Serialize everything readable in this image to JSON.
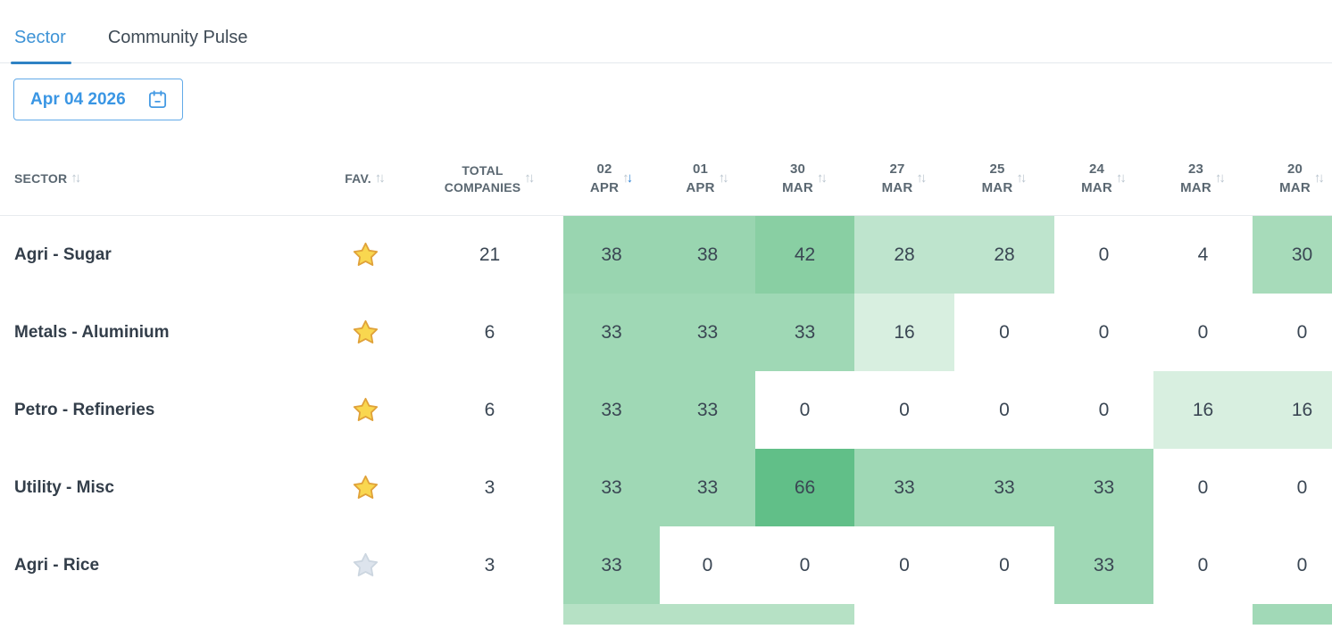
{
  "tabs": [
    {
      "label": "Sector",
      "active": true
    },
    {
      "label": "Community Pulse",
      "active": false
    }
  ],
  "date_picker": {
    "value": "Apr 04 2026"
  },
  "table": {
    "headers": {
      "sector": "SECTOR",
      "fav": "FAV.",
      "total_line1": "TOTAL",
      "total_line2": "COMPANIES",
      "dates": [
        {
          "day": "02",
          "month": "APR",
          "sort": "desc"
        },
        {
          "day": "01",
          "month": "APR",
          "sort": "none"
        },
        {
          "day": "30",
          "month": "MAR",
          "sort": "none"
        },
        {
          "day": "27",
          "month": "MAR",
          "sort": "none"
        },
        {
          "day": "25",
          "month": "MAR",
          "sort": "none"
        },
        {
          "day": "24",
          "month": "MAR",
          "sort": "none"
        },
        {
          "day": "23",
          "month": "MAR",
          "sort": "none"
        },
        {
          "day": "20",
          "month": "MAR",
          "sort": "none"
        }
      ]
    },
    "rows": [
      {
        "sector": "Agri - Sugar",
        "favorite": true,
        "total": "21",
        "values": [
          "38",
          "38",
          "42",
          "28",
          "28",
          "0",
          "4",
          "30"
        ],
        "colors": [
          "#99d5b0",
          "#99d5b0",
          "#89cfa3",
          "#bee4cd",
          "#bee4cd",
          "#ffffff",
          "#ffffff",
          "#a7dbba"
        ]
      },
      {
        "sector": "Metals - Aluminium",
        "favorite": true,
        "total": "6",
        "values": [
          "33",
          "33",
          "33",
          "16",
          "0",
          "0",
          "0",
          "0"
        ],
        "colors": [
          "#9fd8b5",
          "#9fd8b5",
          "#9fd8b5",
          "#d8efe0",
          "#ffffff",
          "#ffffff",
          "#ffffff",
          "#ffffff"
        ]
      },
      {
        "sector": "Petro - Refineries",
        "favorite": true,
        "total": "6",
        "values": [
          "33",
          "33",
          "0",
          "0",
          "0",
          "0",
          "16",
          "16"
        ],
        "colors": [
          "#9fd8b5",
          "#9fd8b5",
          "#ffffff",
          "#ffffff",
          "#ffffff",
          "#ffffff",
          "#d8efe0",
          "#d8efe0"
        ]
      },
      {
        "sector": "Utility - Misc",
        "favorite": true,
        "total": "3",
        "values": [
          "33",
          "33",
          "66",
          "33",
          "33",
          "33",
          "0",
          "0"
        ],
        "colors": [
          "#9fd8b5",
          "#9fd8b5",
          "#61bf88",
          "#9fd8b5",
          "#9fd8b5",
          "#9fd8b5",
          "#ffffff",
          "#ffffff"
        ]
      },
      {
        "sector": "Agri - Rice",
        "favorite": false,
        "total": "3",
        "values": [
          "33",
          "0",
          "0",
          "0",
          "0",
          "33",
          "0",
          "0"
        ],
        "colors": [
          "#9fd8b5",
          "#ffffff",
          "#ffffff",
          "#ffffff",
          "#ffffff",
          "#9fd8b5",
          "#ffffff",
          "#ffffff"
        ]
      }
    ],
    "partial_row_colors": [
      "#b6e1c5",
      "#b6e1c5",
      "#b6e1c5",
      "#ffffff",
      "#ffffff",
      "#ffffff",
      "#ffffff",
      "#a1d9b7"
    ]
  },
  "icons": {
    "sort_up_glyph": "↑",
    "sort_down_glyph": "↓",
    "calendar": "calendar-icon",
    "favorite": "star-filled-icon",
    "not_favorite": "star-outline-icon"
  },
  "colors": {
    "tab_active": "#3e93d6",
    "tab_underline": "#2e82c4",
    "date_text": "#3a96e4",
    "date_border": "#62aae8",
    "header_text": "#5a6771",
    "sort_arrow": "#b9c4ce",
    "sort_arrow_active": "#2e82d4",
    "row_text": "#333e4a",
    "cell_text": "#3a4653",
    "star_gold_fill": "#f9d74f",
    "star_gold_stroke": "#e0a23a",
    "star_gray_fill": "#dde4ed",
    "star_gray_stroke": "#ccd6e0"
  }
}
